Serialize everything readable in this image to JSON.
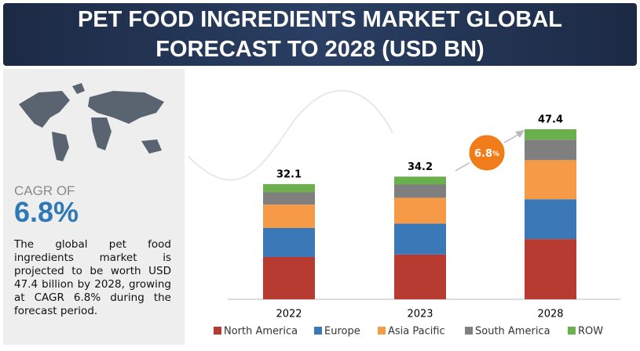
{
  "header": {
    "title": "PET FOOD INGREDIENTS MARKET GLOBAL FORECAST TO 2028 (USD BN)"
  },
  "sidebar": {
    "cagr_caption": "CAGR OF",
    "cagr_value": "6.8%",
    "description": "The global pet food ingredients market is projected to be worth USD 47.4 billion by 2028, growing at CAGR 6.8% during the forecast period."
  },
  "chart_data": {
    "type": "stacked_bar",
    "categories": [
      "2022",
      "2023",
      "2028"
    ],
    "totals": [
      32.1,
      34.2,
      47.4
    ],
    "cagr": {
      "value": "6.8",
      "unit": "%"
    },
    "series": [
      {
        "name": "North America",
        "color": "#b83b32",
        "values": [
          11.8,
          12.5,
          16.8
        ]
      },
      {
        "name": "Europe",
        "color": "#3b78b8",
        "values": [
          8.1,
          8.6,
          11.1
        ]
      },
      {
        "name": "Asia Pacific",
        "color": "#f79a47",
        "values": [
          6.5,
          7.2,
          10.9
        ]
      },
      {
        "name": "South America",
        "color": "#7f7f7f",
        "values": [
          3.5,
          3.7,
          5.7
        ]
      },
      {
        "name": "ROW",
        "color": "#6ab04c",
        "values": [
          2.2,
          2.2,
          2.9
        ]
      }
    ]
  }
}
